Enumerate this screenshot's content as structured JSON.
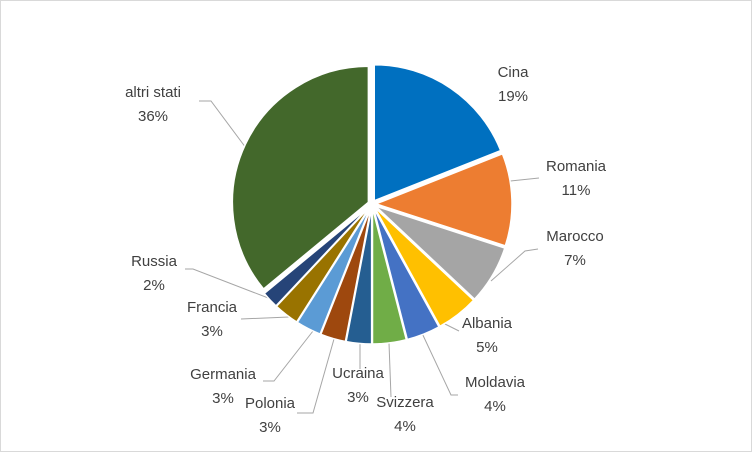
{
  "chart_data": {
    "type": "pie",
    "title": "",
    "start_angle_deg": 0,
    "direction": "clockwise",
    "slices": [
      {
        "label": "Cina",
        "value": 19,
        "value_label": "19%",
        "color": "#0070C0"
      },
      {
        "label": "Romania",
        "value": 11,
        "value_label": "11%",
        "color": "#ED7D31"
      },
      {
        "label": "Marocco",
        "value": 7,
        "value_label": "7%",
        "color": "#A5A5A5"
      },
      {
        "label": "Albania",
        "value": 5,
        "value_label": "5%",
        "color": "#FFC000"
      },
      {
        "label": "Moldavia",
        "value": 4,
        "value_label": "4%",
        "color": "#4472C4"
      },
      {
        "label": "Svizzera",
        "value": 4,
        "value_label": "4%",
        "color": "#70AD47"
      },
      {
        "label": "Ucraina",
        "value": 3,
        "value_label": "3%",
        "color": "#255E91"
      },
      {
        "label": "Polonia",
        "value": 3,
        "value_label": "3%",
        "color": "#9E480E"
      },
      {
        "label": "Germania",
        "value": 3,
        "value_label": "3%",
        "color": "#5B9BD5"
      },
      {
        "label": "Francia",
        "value": 3,
        "value_label": "3%",
        "color": "#997300"
      },
      {
        "label": "Russia",
        "value": 2,
        "value_label": "2%",
        "color": "#264478"
      },
      {
        "label": "altri stati",
        "value": 36,
        "value_label": "36%",
        "color": "#43682B"
      }
    ]
  }
}
